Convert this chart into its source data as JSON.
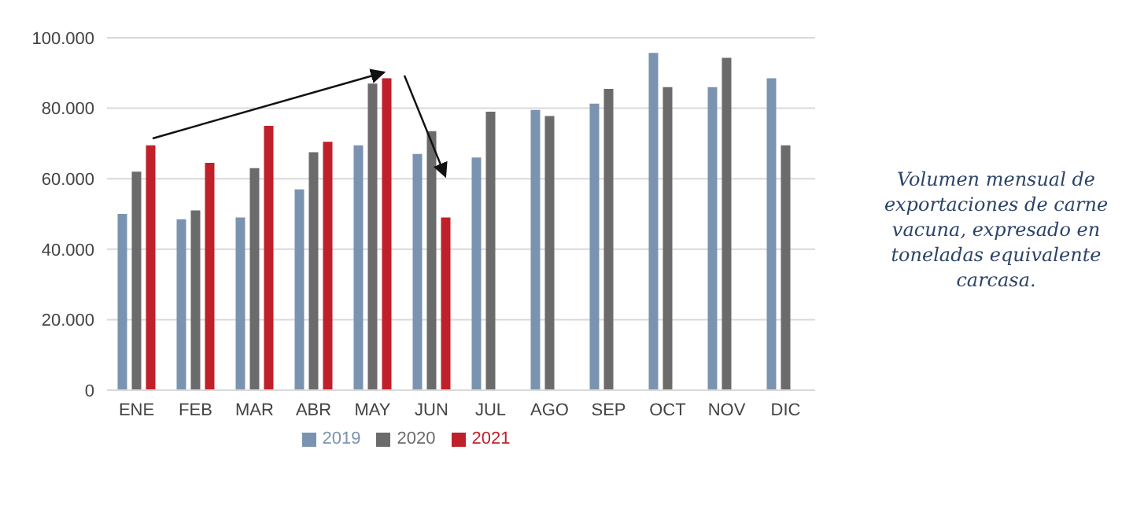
{
  "chart_data": {
    "type": "bar",
    "categories": [
      "ENE",
      "FEB",
      "MAR",
      "ABR",
      "MAY",
      "JUN",
      "JUL",
      "AGO",
      "SEP",
      "OCT",
      "NOV",
      "DIC"
    ],
    "series": [
      {
        "name": "2019",
        "color": "#7a93b0",
        "values": [
          50000,
          48500,
          49000,
          57000,
          69500,
          67000,
          66000,
          79500,
          81300,
          95700,
          86000,
          88500
        ]
      },
      {
        "name": "2020",
        "color": "#6b6b6b",
        "values": [
          62000,
          51000,
          63000,
          67500,
          87000,
          73500,
          79000,
          77800,
          85500,
          86000,
          94300,
          69500
        ]
      },
      {
        "name": "2021",
        "color": "#c0202a",
        "values": [
          69500,
          64500,
          75000,
          70500,
          88500,
          49000,
          null,
          null,
          null,
          null,
          null,
          null
        ]
      }
    ],
    "ylim": [
      0,
      100000
    ],
    "yticks": [
      {
        "value": 0,
        "label": "0"
      },
      {
        "value": 20000,
        "label": "20.000"
      },
      {
        "value": 40000,
        "label": "40.000"
      },
      {
        "value": 60000,
        "label": "60.000"
      },
      {
        "value": 80000,
        "label": "80.000"
      },
      {
        "value": 100000,
        "label": "100.000"
      }
    ],
    "grid": "y",
    "legend": "bottom",
    "annotations": [
      "Volumen mensual de exportaciones de carne vacuna, expresado en toneladas equivalente carcasa."
    ]
  }
}
